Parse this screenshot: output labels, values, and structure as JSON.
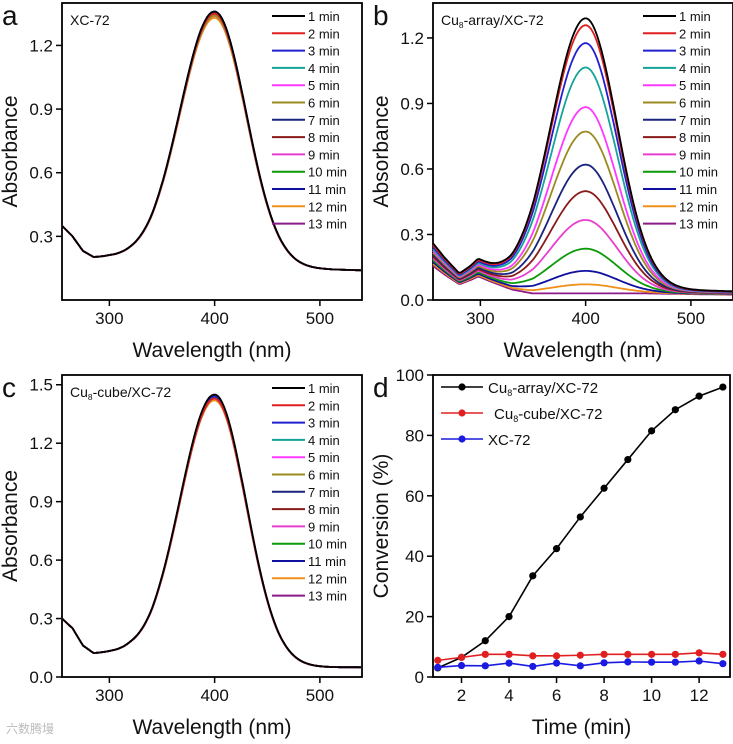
{
  "chart_data": [
    {
      "type": "line",
      "panel_label": "a",
      "inset_label": "XC-72",
      "xlabel": "Wavelength (nm)",
      "ylabel": "Absorbance",
      "xlim": [
        255,
        540
      ],
      "ylim": [
        0,
        1.4
      ],
      "xticks": [
        "300",
        "400",
        "500"
      ],
      "yticks": [
        "0.3",
        "0.6",
        "0.9",
        "1.2"
      ],
      "peak_wavelength": 400,
      "baseline": [
        [
          255,
          0.35
        ],
        [
          265,
          0.3
        ],
        [
          275,
          0.23
        ],
        [
          285,
          0.2
        ],
        [
          300,
          0.2
        ],
        [
          320,
          0.19
        ],
        [
          340,
          0.17
        ],
        [
          460,
          0.15
        ],
        [
          540,
          0.14
        ]
      ],
      "series": [
        {
          "name": "1 min",
          "peak": 1.36
        },
        {
          "name": "2 min",
          "peak": 1.35
        },
        {
          "name": "3 min",
          "peak": 1.36
        },
        {
          "name": "4 min",
          "peak": 1.35
        },
        {
          "name": "5 min",
          "peak": 1.35
        },
        {
          "name": "6 min",
          "peak": 1.34
        },
        {
          "name": "7 min",
          "peak": 1.36
        },
        {
          "name": "8 min",
          "peak": 1.35
        },
        {
          "name": "9 min",
          "peak": 1.34
        },
        {
          "name": "10 min",
          "peak": 1.35
        },
        {
          "name": "11 min",
          "peak": 1.35
        },
        {
          "name": "12 min",
          "peak": 1.33
        },
        {
          "name": "13 min",
          "peak": 1.34
        }
      ]
    },
    {
      "type": "line",
      "panel_label": "b",
      "inset_label_main": "Cu",
      "inset_label_sub": "8",
      "inset_label_rest": "-array/XC-72",
      "xlabel": "Wavelength (nm)",
      "ylabel": "Absorbance",
      "xlim": [
        255,
        540
      ],
      "ylim": [
        0,
        1.36
      ],
      "xticks": [
        "300",
        "400",
        "500"
      ],
      "yticks": [
        "0.0",
        "0.3",
        "0.6",
        "0.9",
        "1.2"
      ],
      "peak_wavelength": 400,
      "baseline": [
        [
          255,
          0.26
        ],
        [
          265,
          0.2
        ],
        [
          280,
          0.12
        ],
        [
          290,
          0.15
        ],
        [
          298,
          0.18
        ],
        [
          310,
          0.14
        ],
        [
          330,
          0.08
        ],
        [
          350,
          0.05
        ],
        [
          460,
          0.05
        ],
        [
          540,
          0.04
        ]
      ],
      "series": [
        {
          "name": "1 min",
          "peak": 1.29
        },
        {
          "name": "2 min",
          "peak": 1.26
        },
        {
          "name": "3 min",
          "peak": 1.18
        },
        {
          "name": "4 min",
          "peak": 1.07
        },
        {
          "name": "5 min",
          "peak": 0.89
        },
        {
          "name": "6 min",
          "peak": 0.78
        },
        {
          "name": "7 min",
          "peak": 0.63
        },
        {
          "name": "8 min",
          "peak": 0.51
        },
        {
          "name": "9 min",
          "peak": 0.38
        },
        {
          "name": "10 min",
          "peak": 0.25
        },
        {
          "name": "11 min",
          "peak": 0.15
        },
        {
          "name": "12 min",
          "peak": 0.09
        },
        {
          "name": "13 min",
          "peak": 0.05
        }
      ]
    },
    {
      "type": "line",
      "panel_label": "c",
      "inset_label_main": "Cu",
      "inset_label_sub": "8",
      "inset_label_rest": "-cube/XC-72",
      "xlabel": "Wavelength (nm)",
      "ylabel": "Absorbance",
      "xlim": [
        255,
        540
      ],
      "ylim": [
        0,
        1.55
      ],
      "xticks": [
        "300",
        "400",
        "500"
      ],
      "yticks": [
        "0.0",
        "0.3",
        "0.6",
        "0.9",
        "1.2",
        "1.5"
      ],
      "peak_wavelength": 400,
      "baseline": [
        [
          255,
          0.3
        ],
        [
          265,
          0.25
        ],
        [
          275,
          0.16
        ],
        [
          285,
          0.12
        ],
        [
          300,
          0.12
        ],
        [
          320,
          0.11
        ],
        [
          340,
          0.08
        ],
        [
          460,
          0.05
        ],
        [
          540,
          0.05
        ]
      ],
      "series": [
        {
          "name": "1 min",
          "peak": 1.45
        },
        {
          "name": "2 min",
          "peak": 1.43
        },
        {
          "name": "3 min",
          "peak": 1.44
        },
        {
          "name": "4 min",
          "peak": 1.43
        },
        {
          "name": "5 min",
          "peak": 1.43
        },
        {
          "name": "6 min",
          "peak": 1.44
        },
        {
          "name": "7 min",
          "peak": 1.44
        },
        {
          "name": "8 min",
          "peak": 1.43
        },
        {
          "name": "9 min",
          "peak": 1.43
        },
        {
          "name": "10 min",
          "peak": 1.43
        },
        {
          "name": "11 min",
          "peak": 1.44
        },
        {
          "name": "12 min",
          "peak": 1.42
        },
        {
          "name": "13 min",
          "peak": 1.43
        }
      ]
    },
    {
      "type": "line",
      "panel_label": "d",
      "xlabel": "Time (min)",
      "ylabel": "Conversion (%)",
      "xlim": [
        0.8,
        13.3
      ],
      "ylim": [
        0,
        100
      ],
      "xticks": [
        "2",
        "4",
        "6",
        "8",
        "10",
        "12"
      ],
      "yticks": [
        "0",
        "20",
        "40",
        "60",
        "80",
        "100"
      ],
      "x": [
        1,
        2,
        3,
        4,
        5,
        6,
        7,
        8,
        9,
        10,
        11,
        12,
        13
      ],
      "series": [
        {
          "name_main": "Cu",
          "name_sub": "8",
          "name_rest": "-array/XC-72",
          "color": "#000000",
          "values": [
            3,
            6.5,
            12,
            20,
            33.5,
            42.5,
            53,
            62.5,
            72,
            81.5,
            88.5,
            93,
            96
          ]
        },
        {
          "name_main": "Cu",
          "name_sub": "8",
          "name_rest": "-cube/XC-72",
          "color": "#e02020",
          "values": [
            5.5,
            6.5,
            7.5,
            7.5,
            7,
            7,
            7.2,
            7.5,
            7.5,
            7.5,
            7.5,
            8,
            7.5
          ]
        },
        {
          "name_main": "XC-72",
          "name_sub": "",
          "name_rest": "",
          "color": "#1a1ae0",
          "values": [
            3.2,
            3.8,
            3.7,
            4.6,
            3.5,
            4.6,
            3.7,
            4.7,
            5,
            4.9,
            4.9,
            5.3,
            4.4
          ]
        }
      ]
    }
  ],
  "colors": [
    "#000000",
    "#e02020",
    "#2020d0",
    "#16a39a",
    "#ff38ff",
    "#9b8a1f",
    "#1a237e",
    "#8b1a1a",
    "#e83fd0",
    "#0a9a0a",
    "#1010a0",
    "#f0901a",
    "#8b1a8b"
  ],
  "watermark": "六数腾墁"
}
